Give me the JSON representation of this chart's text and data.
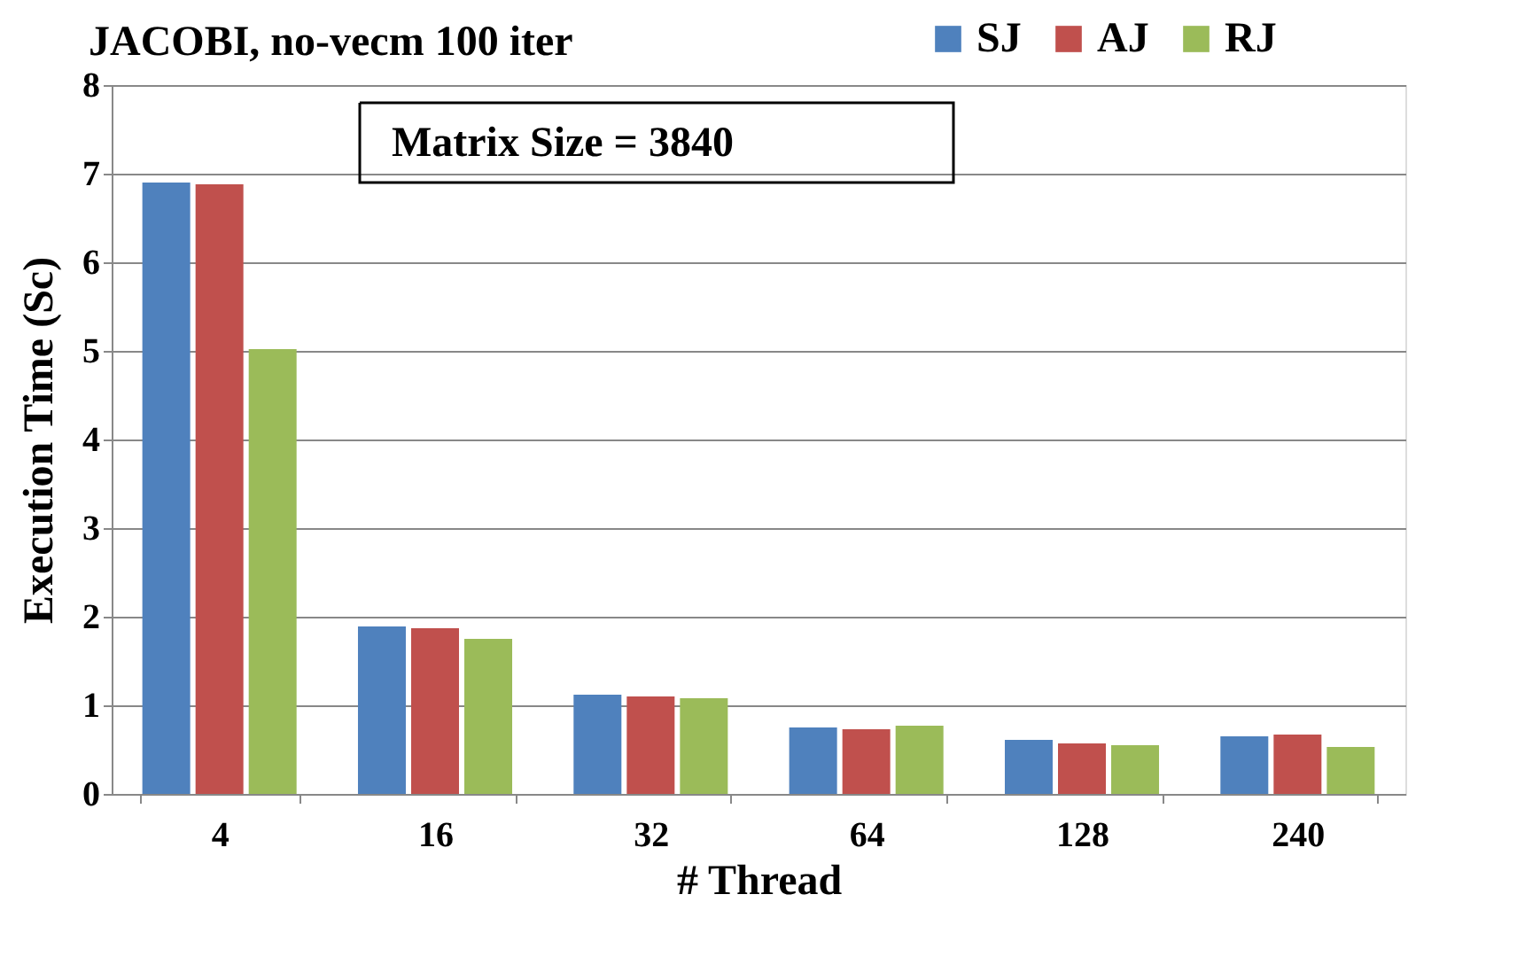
{
  "chart_data": {
    "type": "bar",
    "title": "JACOBI, no-vecm 100 iter",
    "xlabel": "# Thread",
    "ylabel": "Execution Time (Sc)",
    "categories": [
      "4",
      "16",
      "32",
      "64",
      "128",
      "240"
    ],
    "series": [
      {
        "name": "SJ",
        "color": "#4f81bd",
        "values": [
          6.9,
          1.89,
          1.12,
          0.75,
          0.61,
          0.65
        ]
      },
      {
        "name": "AJ",
        "color": "#c0504d",
        "values": [
          6.88,
          1.87,
          1.1,
          0.73,
          0.57,
          0.67
        ]
      },
      {
        "name": "RJ",
        "color": "#9bbb59",
        "values": [
          5.02,
          1.75,
          1.08,
          0.77,
          0.55,
          0.53
        ]
      }
    ],
    "ylim": [
      0,
      8
    ],
    "yticks": [
      0,
      1,
      2,
      3,
      4,
      5,
      6,
      7,
      8
    ],
    "grid": "y",
    "legend": "top right",
    "annotations": [
      "Matrix Size = 3840"
    ]
  }
}
